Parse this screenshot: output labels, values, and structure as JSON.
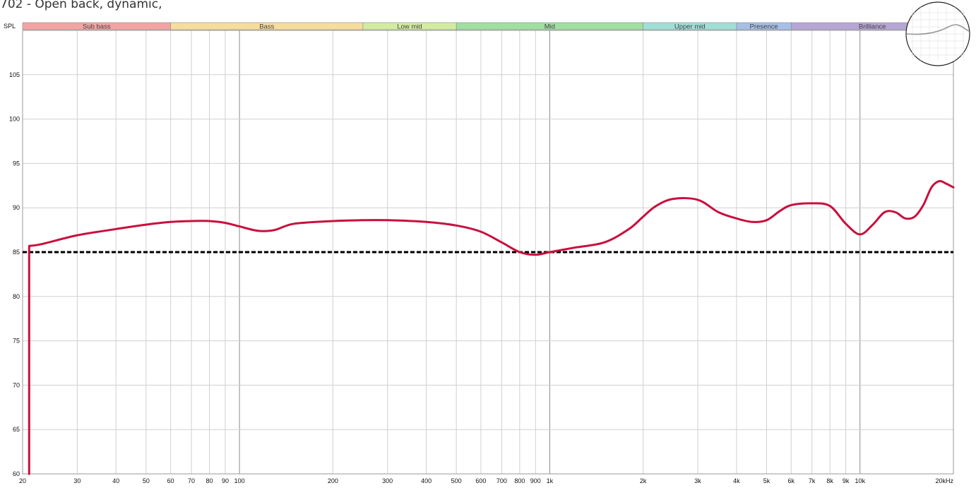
{
  "title": "702 - Open back, dynamic,",
  "y_axis_label": "SPL",
  "colors": {
    "curve": "#c8103e",
    "reference": "#000000",
    "grid_minor": "#d0d0d0",
    "grid_major": "#8a8a8a",
    "frame": "#9a9a9a"
  },
  "bands": [
    {
      "label": "Sub bass",
      "from": 20,
      "to": 60,
      "color": "#f4a3a3"
    },
    {
      "label": "Bass",
      "from": 60,
      "to": 250,
      "color": "#f7dd9c"
    },
    {
      "label": "Low mid",
      "from": 250,
      "to": 500,
      "color": "#d2eba0"
    },
    {
      "label": "Mid",
      "from": 500,
      "to": 2000,
      "color": "#a0dfa2"
    },
    {
      "label": "Upper mid",
      "from": 2000,
      "to": 4000,
      "color": "#a0dfd8"
    },
    {
      "label": "Presence",
      "from": 4000,
      "to": 6000,
      "color": "#a6bfe6"
    },
    {
      "label": "Brilliance",
      "from": 6000,
      "to": 20000,
      "color": "#b6a6d6"
    }
  ],
  "chart_data": {
    "type": "line",
    "xscale": "log",
    "xlim": [
      20,
      20000
    ],
    "ylim": [
      60,
      110
    ],
    "grid": true,
    "x_ticks": [
      {
        "value": 20,
        "label": "20"
      },
      {
        "value": 30,
        "label": "30"
      },
      {
        "value": 40,
        "label": "40"
      },
      {
        "value": 50,
        "label": "50"
      },
      {
        "value": 60,
        "label": "60"
      },
      {
        "value": 70,
        "label": "70"
      },
      {
        "value": 80,
        "label": "80"
      },
      {
        "value": 90,
        "label": "90"
      },
      {
        "value": 100,
        "label": "100"
      },
      {
        "value": 200,
        "label": "200"
      },
      {
        "value": 300,
        "label": "300"
      },
      {
        "value": 400,
        "label": "400"
      },
      {
        "value": 500,
        "label": "500"
      },
      {
        "value": 600,
        "label": "600"
      },
      {
        "value": 700,
        "label": "700"
      },
      {
        "value": 800,
        "label": "800"
      },
      {
        "value": 900,
        "label": "900"
      },
      {
        "value": 1000,
        "label": "1k"
      },
      {
        "value": 2000,
        "label": "2k"
      },
      {
        "value": 3000,
        "label": "3k"
      },
      {
        "value": 4000,
        "label": "4k"
      },
      {
        "value": 5000,
        "label": "5k"
      },
      {
        "value": 6000,
        "label": "6k"
      },
      {
        "value": 7000,
        "label": "7k"
      },
      {
        "value": 8000,
        "label": "8k"
      },
      {
        "value": 9000,
        "label": "9k"
      },
      {
        "value": 10000,
        "label": "10k"
      },
      {
        "value": 20000,
        "label": "20kHz"
      }
    ],
    "y_ticks": [
      60,
      65,
      70,
      75,
      80,
      85,
      90,
      95,
      100,
      105
    ],
    "reference_line": 85,
    "series": [
      {
        "x": [
          21,
          21,
          23,
          30,
          40,
          50,
          60,
          70,
          80,
          90,
          100,
          115,
          130,
          150,
          200,
          250,
          300,
          400,
          500,
          600,
          700,
          800,
          900,
          1000,
          1200,
          1500,
          1800,
          2000,
          2200,
          2500,
          3000,
          3500,
          4000,
          4500,
          5000,
          5500,
          6000,
          7000,
          8000,
          9000,
          10000,
          11000,
          12000,
          13000,
          14000,
          15000,
          16000,
          17000,
          18000,
          19000,
          20000
        ],
        "y": [
          60,
          85.7,
          85.9,
          86.9,
          87.6,
          88.1,
          88.4,
          88.5,
          88.5,
          88.3,
          87.9,
          87.4,
          87.5,
          88.2,
          88.5,
          88.6,
          88.6,
          88.4,
          88.0,
          87.3,
          86.1,
          85.0,
          84.7,
          85.0,
          85.5,
          86.1,
          87.6,
          89.0,
          90.2,
          91.0,
          90.9,
          89.5,
          88.8,
          88.4,
          88.6,
          89.6,
          90.3,
          90.5,
          90.2,
          88.2,
          87.0,
          88.1,
          89.5,
          89.5,
          88.8,
          89.0,
          90.3,
          92.3,
          93.0,
          92.7,
          92.3
        ]
      }
    ]
  }
}
